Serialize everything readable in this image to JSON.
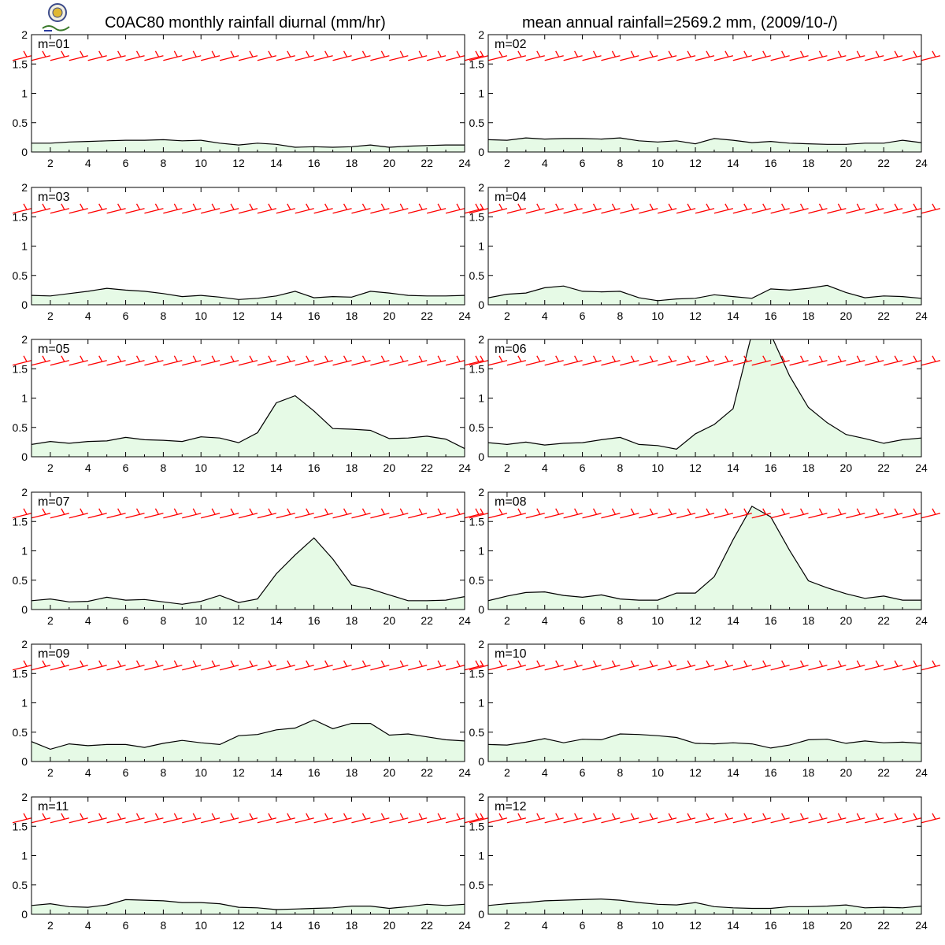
{
  "header": {
    "left_title": "C0AC80 monthly rainfall diurnal (mm/hr)",
    "right_title": "mean annual rainfall=2569.2 mm, (2009/10-/)"
  },
  "colors": {
    "fill": "#e6fae6",
    "line": "#000000",
    "barb": "#ff0000"
  },
  "icons": {
    "logo": "lab-logo-icon"
  },
  "chart_data": [
    {
      "type": "area",
      "title": "m=01",
      "x": [
        1,
        2,
        3,
        4,
        5,
        6,
        7,
        8,
        9,
        10,
        11,
        12,
        13,
        14,
        15,
        16,
        17,
        18,
        19,
        20,
        21,
        22,
        23,
        24
      ],
      "values": [
        0.15,
        0.15,
        0.17,
        0.18,
        0.19,
        0.2,
        0.2,
        0.21,
        0.19,
        0.2,
        0.15,
        0.12,
        0.15,
        0.13,
        0.08,
        0.09,
        0.08,
        0.09,
        0.12,
        0.08,
        0.1,
        0.11,
        0.12,
        0.12
      ],
      "xticks": [
        2,
        4,
        6,
        8,
        10,
        12,
        14,
        16,
        18,
        20,
        22,
        24
      ],
      "yticks": [
        0,
        0.5,
        1,
        1.5,
        2
      ],
      "xlim": [
        1,
        24
      ],
      "ylim": [
        0,
        2
      ],
      "barb_y": 1.6
    },
    {
      "type": "area",
      "title": "m=02",
      "x": [
        1,
        2,
        3,
        4,
        5,
        6,
        7,
        8,
        9,
        10,
        11,
        12,
        13,
        14,
        15,
        16,
        17,
        18,
        19,
        20,
        21,
        22,
        23,
        24
      ],
      "values": [
        0.21,
        0.2,
        0.24,
        0.22,
        0.23,
        0.23,
        0.22,
        0.24,
        0.19,
        0.17,
        0.19,
        0.14,
        0.23,
        0.2,
        0.16,
        0.18,
        0.15,
        0.14,
        0.13,
        0.13,
        0.15,
        0.15,
        0.2,
        0.16
      ],
      "xticks": [
        2,
        4,
        6,
        8,
        10,
        12,
        14,
        16,
        18,
        20,
        22,
        24
      ],
      "yticks": [
        0,
        0.5,
        1,
        1.5,
        2
      ],
      "xlim": [
        1,
        24
      ],
      "ylim": [
        0,
        2
      ],
      "barb_y": 1.6
    },
    {
      "type": "area",
      "title": "m=03",
      "x": [
        1,
        2,
        3,
        4,
        5,
        6,
        7,
        8,
        9,
        10,
        11,
        12,
        13,
        14,
        15,
        16,
        17,
        18,
        19,
        20,
        21,
        22,
        23,
        24
      ],
      "values": [
        0.16,
        0.15,
        0.19,
        0.23,
        0.28,
        0.25,
        0.23,
        0.19,
        0.14,
        0.16,
        0.13,
        0.09,
        0.11,
        0.15,
        0.23,
        0.12,
        0.14,
        0.13,
        0.23,
        0.2,
        0.16,
        0.15,
        0.15,
        0.16
      ],
      "xticks": [
        2,
        4,
        6,
        8,
        10,
        12,
        14,
        16,
        18,
        20,
        22,
        24
      ],
      "yticks": [
        0,
        0.5,
        1,
        1.5,
        2
      ],
      "xlim": [
        1,
        24
      ],
      "ylim": [
        0,
        2
      ],
      "barb_y": 1.6
    },
    {
      "type": "area",
      "title": "m=04",
      "x": [
        1,
        2,
        3,
        4,
        5,
        6,
        7,
        8,
        9,
        10,
        11,
        12,
        13,
        14,
        15,
        16,
        17,
        18,
        19,
        20,
        21,
        22,
        23,
        24
      ],
      "values": [
        0.12,
        0.18,
        0.2,
        0.29,
        0.32,
        0.23,
        0.22,
        0.23,
        0.12,
        0.07,
        0.1,
        0.11,
        0.17,
        0.14,
        0.11,
        0.27,
        0.25,
        0.28,
        0.33,
        0.21,
        0.12,
        0.15,
        0.14,
        0.11
      ],
      "xticks": [
        2,
        4,
        6,
        8,
        10,
        12,
        14,
        16,
        18,
        20,
        22,
        24
      ],
      "yticks": [
        0,
        0.5,
        1,
        1.5,
        2
      ],
      "xlim": [
        1,
        24
      ],
      "ylim": [
        0,
        2
      ],
      "barb_y": 1.6
    },
    {
      "type": "area",
      "title": "m=05",
      "x": [
        1,
        2,
        3,
        4,
        5,
        6,
        7,
        8,
        9,
        10,
        11,
        12,
        13,
        14,
        15,
        16,
        17,
        18,
        19,
        20,
        21,
        22,
        23,
        24
      ],
      "values": [
        0.21,
        0.26,
        0.23,
        0.26,
        0.27,
        0.33,
        0.29,
        0.28,
        0.26,
        0.34,
        0.32,
        0.24,
        0.41,
        0.92,
        1.04,
        0.78,
        0.48,
        0.47,
        0.45,
        0.31,
        0.32,
        0.35,
        0.3,
        0.14
      ],
      "xticks": [
        2,
        4,
        6,
        8,
        10,
        12,
        14,
        16,
        18,
        20,
        22,
        24
      ],
      "yticks": [
        0,
        0.5,
        1,
        1.5,
        2
      ],
      "xlim": [
        1,
        24
      ],
      "ylim": [
        0,
        2
      ],
      "barb_y": 1.6
    },
    {
      "type": "area",
      "title": "m=06",
      "x": [
        1,
        2,
        3,
        4,
        5,
        6,
        7,
        8,
        9,
        10,
        11,
        12,
        13,
        14,
        15,
        16,
        17,
        18,
        19,
        20,
        21,
        22,
        23,
        24
      ],
      "values": [
        0.24,
        0.21,
        0.25,
        0.2,
        0.23,
        0.24,
        0.29,
        0.33,
        0.21,
        0.19,
        0.13,
        0.39,
        0.55,
        0.82,
        2.1,
        2.09,
        1.38,
        0.84,
        0.58,
        0.38,
        0.31,
        0.23,
        0.29,
        0.32
      ],
      "xticks": [
        2,
        4,
        6,
        8,
        10,
        12,
        14,
        16,
        18,
        20,
        22,
        24
      ],
      "yticks": [
        0,
        0.5,
        1,
        1.5,
        2
      ],
      "xlim": [
        1,
        24
      ],
      "ylim": [
        0,
        2
      ],
      "barb_y": 1.6
    },
    {
      "type": "area",
      "title": "m=07",
      "x": [
        1,
        2,
        3,
        4,
        5,
        6,
        7,
        8,
        9,
        10,
        11,
        12,
        13,
        14,
        15,
        16,
        17,
        18,
        19,
        20,
        21,
        22,
        23,
        24
      ],
      "values": [
        0.15,
        0.18,
        0.13,
        0.14,
        0.21,
        0.16,
        0.17,
        0.13,
        0.09,
        0.14,
        0.24,
        0.12,
        0.18,
        0.61,
        0.93,
        1.22,
        0.86,
        0.42,
        0.35,
        0.25,
        0.15,
        0.15,
        0.16,
        0.22
      ],
      "xticks": [
        2,
        4,
        6,
        8,
        10,
        12,
        14,
        16,
        18,
        20,
        22,
        24
      ],
      "yticks": [
        0,
        0.5,
        1,
        1.5,
        2
      ],
      "xlim": [
        1,
        24
      ],
      "ylim": [
        0,
        2
      ],
      "barb_y": 1.6
    },
    {
      "type": "area",
      "title": "m=08",
      "x": [
        1,
        2,
        3,
        4,
        5,
        6,
        7,
        8,
        9,
        10,
        11,
        12,
        13,
        14,
        15,
        16,
        17,
        18,
        19,
        20,
        21,
        22,
        23,
        24
      ],
      "values": [
        0.15,
        0.23,
        0.29,
        0.3,
        0.24,
        0.21,
        0.25,
        0.18,
        0.16,
        0.16,
        0.28,
        0.28,
        0.56,
        1.19,
        1.76,
        1.58,
        1.01,
        0.49,
        0.37,
        0.27,
        0.19,
        0.23,
        0.16,
        0.16
      ],
      "xticks": [
        2,
        4,
        6,
        8,
        10,
        12,
        14,
        16,
        18,
        20,
        22,
        24
      ],
      "yticks": [
        0,
        0.5,
        1,
        1.5,
        2
      ],
      "xlim": [
        1,
        24
      ],
      "ylim": [
        0,
        2
      ],
      "barb_y": 1.6
    },
    {
      "type": "area",
      "title": "m=09",
      "x": [
        1,
        2,
        3,
        4,
        5,
        6,
        7,
        8,
        9,
        10,
        11,
        12,
        13,
        14,
        15,
        16,
        17,
        18,
        19,
        20,
        21,
        22,
        23,
        24
      ],
      "values": [
        0.34,
        0.21,
        0.3,
        0.27,
        0.29,
        0.29,
        0.24,
        0.31,
        0.36,
        0.32,
        0.29,
        0.44,
        0.46,
        0.54,
        0.57,
        0.71,
        0.56,
        0.65,
        0.65,
        0.45,
        0.47,
        0.42,
        0.37,
        0.35
      ],
      "xticks": [
        2,
        4,
        6,
        8,
        10,
        12,
        14,
        16,
        18,
        20,
        22,
        24
      ],
      "yticks": [
        0,
        0.5,
        1,
        1.5,
        2
      ],
      "xlim": [
        1,
        24
      ],
      "ylim": [
        0,
        2
      ],
      "barb_y": 1.6
    },
    {
      "type": "area",
      "title": "m=10",
      "x": [
        1,
        2,
        3,
        4,
        5,
        6,
        7,
        8,
        9,
        10,
        11,
        12,
        13,
        14,
        15,
        16,
        17,
        18,
        19,
        20,
        21,
        22,
        23,
        24
      ],
      "values": [
        0.29,
        0.28,
        0.33,
        0.39,
        0.32,
        0.38,
        0.37,
        0.47,
        0.46,
        0.44,
        0.41,
        0.31,
        0.3,
        0.32,
        0.3,
        0.23,
        0.28,
        0.37,
        0.38,
        0.31,
        0.35,
        0.32,
        0.33,
        0.31
      ],
      "xticks": [
        2,
        4,
        6,
        8,
        10,
        12,
        14,
        16,
        18,
        20,
        22,
        24
      ],
      "yticks": [
        0,
        0.5,
        1,
        1.5,
        2
      ],
      "xlim": [
        1,
        24
      ],
      "ylim": [
        0,
        2
      ],
      "barb_y": 1.6
    },
    {
      "type": "area",
      "title": "m=11",
      "x": [
        1,
        2,
        3,
        4,
        5,
        6,
        7,
        8,
        9,
        10,
        11,
        12,
        13,
        14,
        15,
        16,
        17,
        18,
        19,
        20,
        21,
        22,
        23,
        24
      ],
      "values": [
        0.15,
        0.18,
        0.13,
        0.12,
        0.16,
        0.25,
        0.24,
        0.23,
        0.2,
        0.2,
        0.18,
        0.12,
        0.11,
        0.08,
        0.09,
        0.1,
        0.11,
        0.14,
        0.14,
        0.1,
        0.13,
        0.17,
        0.15,
        0.17
      ],
      "xticks": [
        2,
        4,
        6,
        8,
        10,
        12,
        14,
        16,
        18,
        20,
        22,
        24
      ],
      "yticks": [
        0,
        0.5,
        1,
        1.5,
        2
      ],
      "xlim": [
        1,
        24
      ],
      "ylim": [
        0,
        2
      ],
      "barb_y": 1.6
    },
    {
      "type": "area",
      "title": "m=12",
      "x": [
        1,
        2,
        3,
        4,
        5,
        6,
        7,
        8,
        9,
        10,
        11,
        12,
        13,
        14,
        15,
        16,
        17,
        18,
        19,
        20,
        21,
        22,
        23,
        24
      ],
      "values": [
        0.15,
        0.18,
        0.2,
        0.23,
        0.24,
        0.25,
        0.26,
        0.24,
        0.2,
        0.17,
        0.16,
        0.2,
        0.13,
        0.11,
        0.1,
        0.1,
        0.13,
        0.13,
        0.14,
        0.16,
        0.11,
        0.12,
        0.11,
        0.14
      ],
      "xticks": [
        2,
        4,
        6,
        8,
        10,
        12,
        14,
        16,
        18,
        20,
        22,
        24
      ],
      "yticks": [
        0,
        0.5,
        1,
        1.5,
        2
      ],
      "xlim": [
        1,
        24
      ],
      "ylim": [
        0,
        2
      ],
      "barb_y": 1.6
    }
  ]
}
